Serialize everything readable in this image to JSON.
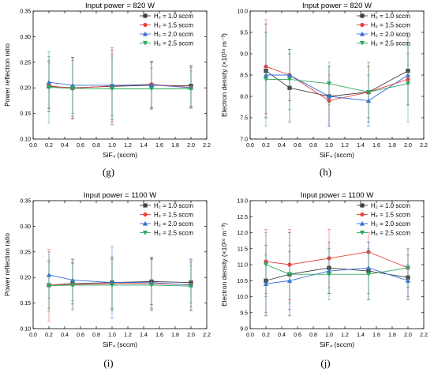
{
  "captions": [
    "(g)",
    "(h)",
    "(i)",
    "(j)"
  ],
  "chart_data": [
    {
      "type": "line",
      "title": "Input power = 820 W",
      "xlabel": "SiF₄ (sccm)",
      "ylabel": "Power reflection ratio",
      "xlim": [
        0.0,
        2.2
      ],
      "ylim": [
        0.1,
        0.35
      ],
      "xticks": [
        "0.0",
        "0.2",
        "0.4",
        "0.6",
        "0.8",
        "1.0",
        "1.2",
        "1.4",
        "1.6",
        "1.8",
        "2.0",
        "2.2"
      ],
      "yticks": [
        "0.10",
        "0.15",
        "0.20",
        "0.25",
        "0.30",
        "0.35"
      ],
      "legend_position": "top-right",
      "x": [
        0.2,
        0.5,
        1.0,
        1.5,
        2.0
      ],
      "series": [
        {
          "name": "H₂ = 1.0 sccm",
          "color": "#404040",
          "marker": "square",
          "values": [
            0.203,
            0.2,
            0.203,
            0.205,
            0.204
          ],
          "errors": [
            0.05,
            0.06,
            0.075,
            0.045,
            0.04
          ]
        },
        {
          "name": "H₂ = 1.5 sccm",
          "color": "#e8423d",
          "marker": "circle",
          "values": [
            0.204,
            0.199,
            0.204,
            0.207,
            0.201
          ],
          "errors": [
            0.045,
            0.06,
            0.07,
            0.045,
            0.04
          ]
        },
        {
          "name": "H₂ = 2.0 sccm",
          "color": "#3a6fd8",
          "marker": "triangle-up",
          "values": [
            0.211,
            0.205,
            0.205,
            0.206,
            0.2
          ],
          "errors": [
            0.05,
            0.055,
            0.06,
            0.045,
            0.04
          ]
        },
        {
          "name": "H₂ = 2.5 sccm",
          "color": "#2ca860",
          "marker": "triangle-down",
          "values": [
            0.201,
            0.199,
            0.198,
            0.198,
            0.198
          ],
          "errors": [
            0.07,
            0.055,
            0.06,
            0.04,
            0.035
          ]
        }
      ]
    },
    {
      "type": "line",
      "title": "Input power = 820 W",
      "xlabel": "SiF₄ (sccm)",
      "ylabel": "Electron density (×10¹⁶ m⁻³)",
      "xlim": [
        0.0,
        2.2
      ],
      "ylim": [
        7.0,
        10.0
      ],
      "xticks": [
        "0.0",
        "0.2",
        "0.4",
        "0.6",
        "0.8",
        "1.0",
        "1.2",
        "1.4",
        "1.6",
        "1.8",
        "2.0",
        "2.2"
      ],
      "yticks": [
        "7.0",
        "7.5",
        "8.0",
        "8.5",
        "9.0",
        "9.5",
        "10.0"
      ],
      "legend_position": "top-right",
      "x": [
        0.2,
        0.5,
        1.0,
        1.5,
        2.0
      ],
      "series": [
        {
          "name": "H₂ = 1.0 sccm",
          "color": "#404040",
          "marker": "square",
          "values": [
            8.6,
            8.2,
            8.0,
            8.1,
            8.6
          ],
          "errors": [
            1.1,
            0.8,
            0.7,
            0.6,
            0.8
          ]
        },
        {
          "name": "H₂ = 1.5 sccm",
          "color": "#e8423d",
          "marker": "circle",
          "values": [
            8.7,
            8.5,
            7.9,
            8.1,
            8.4
          ],
          "errors": [
            1.1,
            0.6,
            0.6,
            0.7,
            0.6
          ]
        },
        {
          "name": "H₂ = 2.0 sccm",
          "color": "#3a6fd8",
          "marker": "triangle-up",
          "values": [
            8.5,
            8.5,
            8.0,
            7.9,
            8.5
          ],
          "errors": [
            1.0,
            0.6,
            0.7,
            0.6,
            0.7
          ]
        },
        {
          "name": "H₂ = 2.5 sccm",
          "color": "#2ca860",
          "marker": "triangle-down",
          "values": [
            8.4,
            8.4,
            8.3,
            8.1,
            8.3
          ],
          "errors": [
            1.1,
            0.7,
            0.5,
            0.7,
            0.9
          ]
        }
      ]
    },
    {
      "type": "line",
      "title": "Input power = 1100 W",
      "xlabel": "SiF₄ (sccm)",
      "ylabel": "Power reflection ratio",
      "xlim": [
        0.0,
        2.2
      ],
      "ylim": [
        0.1,
        0.35
      ],
      "xticks": [
        "0.0",
        "0.2",
        "0.4",
        "0.6",
        "0.8",
        "1.0",
        "1.2",
        "1.4",
        "1.6",
        "1.8",
        "2.0",
        "2.2"
      ],
      "yticks": [
        "0.10",
        "0.15",
        "0.20",
        "0.25",
        "0.30",
        "0.35"
      ],
      "legend_position": "top-right",
      "x": [
        0.2,
        0.5,
        1.0,
        1.5,
        2.0
      ],
      "series": [
        {
          "name": "H₂ = 1.0 sccm",
          "color": "#404040",
          "marker": "square",
          "values": [
            0.185,
            0.188,
            0.19,
            0.192,
            0.19
          ],
          "errors": [
            0.045,
            0.04,
            0.05,
            0.045,
            0.04
          ]
        },
        {
          "name": "H₂ = 1.5 sccm",
          "color": "#e8423d",
          "marker": "circle",
          "values": [
            0.185,
            0.186,
            0.188,
            0.188,
            0.186
          ],
          "errors": [
            0.07,
            0.05,
            0.05,
            0.05,
            0.05
          ]
        },
        {
          "name": "H₂ = 2.0 sccm",
          "color": "#3a6fd8",
          "marker": "triangle-up",
          "values": [
            0.205,
            0.195,
            0.19,
            0.19,
            0.185
          ],
          "errors": [
            0.045,
            0.04,
            0.07,
            0.05,
            0.05
          ]
        },
        {
          "name": "H₂ = 2.5 sccm",
          "color": "#2ca860",
          "marker": "triangle-down",
          "values": [
            0.184,
            0.185,
            0.185,
            0.185,
            0.183
          ],
          "errors": [
            0.05,
            0.045,
            0.05,
            0.05,
            0.04
          ]
        }
      ]
    },
    {
      "type": "line",
      "title": "Input power = 1100 W",
      "xlabel": "SiF₄ (sccm)",
      "ylabel": "Electron density (×10¹⁶ m⁻³)",
      "xlim": [
        0.0,
        2.2
      ],
      "ylim": [
        9.0,
        13.0
      ],
      "xticks": [
        "0.0",
        "0.2",
        "0.4",
        "0.6",
        "0.8",
        "1.0",
        "1.2",
        "1.4",
        "1.6",
        "1.8",
        "2.0",
        "2.2"
      ],
      "yticks": [
        "9.0",
        "9.5",
        "10.0",
        "10.5",
        "11.0",
        "11.5",
        "12.0",
        "12.5",
        "13.0"
      ],
      "legend_position": "top-right",
      "x": [
        0.2,
        0.5,
        1.0,
        1.5,
        2.0
      ],
      "series": [
        {
          "name": "H₂ = 1.0 sccm",
          "color": "#404040",
          "marker": "square",
          "values": [
            10.5,
            10.7,
            10.9,
            10.8,
            10.6
          ],
          "errors": [
            1.1,
            1.3,
            0.8,
            0.9,
            0.7
          ]
        },
        {
          "name": "H₂ = 1.5 sccm",
          "color": "#e8423d",
          "marker": "circle",
          "values": [
            11.1,
            11.0,
            11.2,
            11.4,
            10.9
          ],
          "errors": [
            1.0,
            1.1,
            0.9,
            0.6,
            0.6
          ]
        },
        {
          "name": "H₂ = 2.0 sccm",
          "color": "#3a6fd8",
          "marker": "triangle-up",
          "values": [
            10.4,
            10.5,
            10.8,
            10.9,
            10.5
          ],
          "errors": [
            0.9,
            0.9,
            0.7,
            0.8,
            0.5
          ]
        },
        {
          "name": "H₂ = 2.5 sccm",
          "color": "#2ca860",
          "marker": "triangle-down",
          "values": [
            11.0,
            10.7,
            10.7,
            10.7,
            10.9
          ],
          "errors": [
            1.0,
            0.9,
            0.8,
            0.8,
            0.6
          ]
        }
      ]
    }
  ]
}
